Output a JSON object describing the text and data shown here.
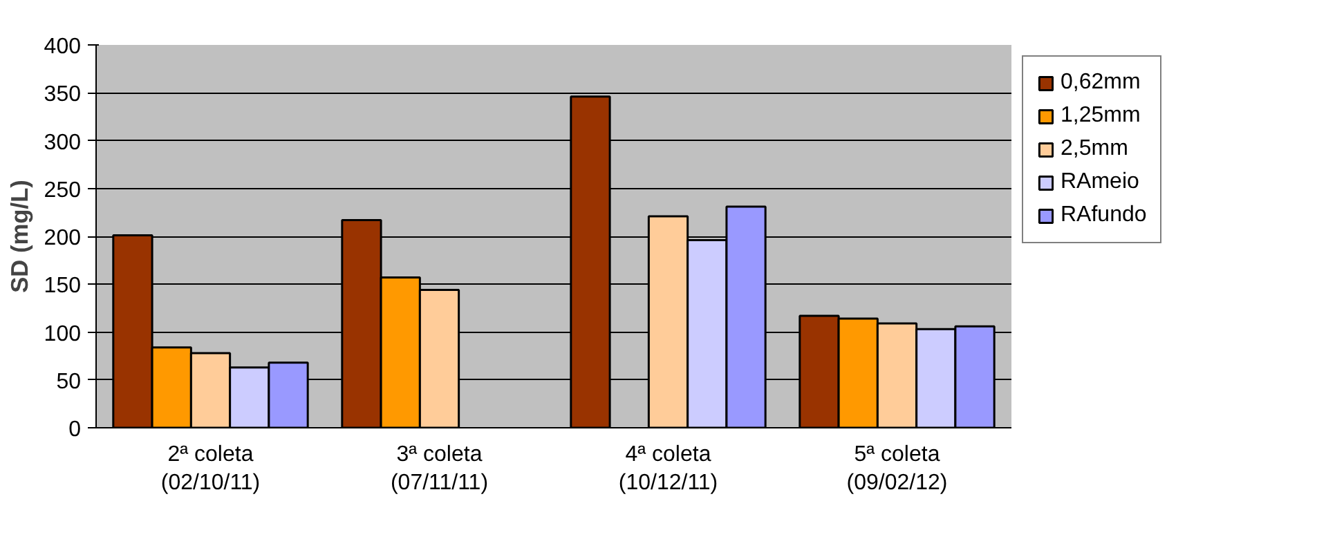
{
  "chart_data": {
    "type": "bar",
    "ylabel": "SD (mg/L)",
    "categories": [
      "2ª coleta\n(02/10/11)",
      "3ª coleta\n(07/11/11)",
      "4ª coleta\n(10/12/11)",
      "5ª coleta\n(09/02/12)"
    ],
    "series": [
      {
        "name": "0,62mm",
        "color": "#993300",
        "values": [
          201,
          217,
          346,
          117
        ]
      },
      {
        "name": "1,25mm",
        "color": "#ff9900",
        "values": [
          84,
          157,
          null,
          114
        ]
      },
      {
        "name": "2,5mm",
        "color": "#ffcc99",
        "values": [
          78,
          144,
          221,
          109
        ]
      },
      {
        "name": "RAmeio",
        "color": "#ccccff",
        "values": [
          63,
          null,
          196,
          103
        ]
      },
      {
        "name": "RAfundo",
        "color": "#9999ff",
        "values": [
          68,
          null,
          231,
          106
        ]
      }
    ],
    "ylim": [
      0,
      400
    ],
    "yticks": [
      0,
      50,
      100,
      150,
      200,
      250,
      300,
      350,
      400
    ],
    "grid": "y",
    "legend": "right"
  }
}
